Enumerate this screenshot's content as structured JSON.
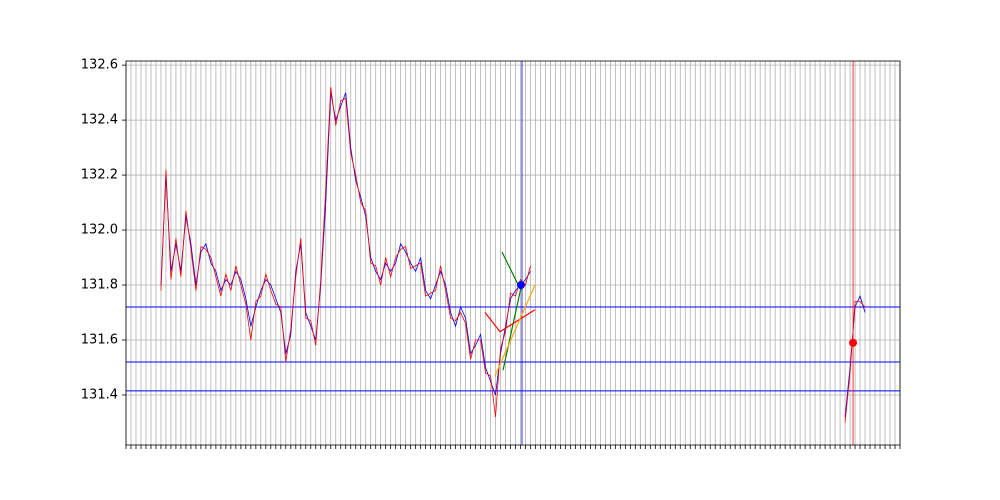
{
  "chart_data": {
    "type": "line",
    "xlim": [
      0,
      155
    ],
    "xticks": [
      0,
      1,
      2,
      3,
      4,
      5,
      6,
      7,
      8,
      9,
      10,
      11,
      12,
      13,
      14,
      15,
      16,
      17,
      18,
      19,
      20,
      21,
      22,
      23,
      24,
      25,
      26,
      27,
      28,
      29,
      30,
      31,
      32,
      33,
      34,
      35,
      36,
      37,
      38,
      39,
      40,
      41,
      42,
      43,
      44,
      45,
      46,
      47,
      48,
      49,
      50,
      51,
      52,
      53,
      54,
      55,
      56,
      57,
      58,
      59,
      60,
      61,
      62,
      63,
      64,
      65,
      66,
      67,
      68,
      69,
      70,
      71,
      72,
      73,
      74,
      75,
      76,
      77,
      78,
      79,
      80,
      81,
      82,
      83,
      84,
      85,
      86,
      87,
      88,
      89,
      90,
      91,
      92,
      93,
      94,
      95,
      96,
      97,
      98,
      99,
      100,
      101,
      102,
      103,
      104,
      105,
      106,
      107,
      108,
      109,
      110,
      111,
      112,
      113,
      114,
      115,
      116,
      117,
      118,
      119,
      120,
      121,
      122,
      123,
      124,
      125,
      126,
      127,
      128,
      129,
      130,
      131,
      132,
      133,
      134,
      135,
      136,
      137,
      138,
      139,
      140,
      141,
      142,
      143,
      144,
      145,
      146,
      147,
      148,
      149,
      150,
      151,
      152,
      153,
      154,
      155
    ],
    "ylim": [
      131.218,
      132.615
    ],
    "yticks": [
      131.4,
      131.6,
      131.8,
      {
        "value": 132,
        "label": "132.0"
      },
      132.2,
      132.4,
      132.6
    ],
    "grid": true,
    "x": [
      7,
      8,
      9,
      10,
      11,
      12,
      13,
      14,
      15,
      16,
      17,
      18,
      19,
      20,
      21,
      22,
      23,
      24,
      25,
      26,
      27,
      28,
      29,
      30,
      31,
      32,
      33,
      34,
      35,
      36,
      37,
      38,
      39,
      40,
      41,
      42,
      43,
      44,
      45,
      46,
      47,
      48,
      49,
      50,
      51,
      52,
      53,
      54,
      55,
      56,
      57,
      58,
      59,
      60,
      61,
      62,
      63,
      64,
      65,
      66,
      67,
      68,
      69,
      70,
      71,
      72,
      73,
      74,
      75,
      76,
      77,
      78,
      79,
      80,
      81,
      82,
      144,
      145,
      146,
      147,
      148
    ],
    "series": [
      {
        "color": "#0000ff",
        "values": [
          131.8,
          132.2,
          131.85,
          131.95,
          131.85,
          132.05,
          131.95,
          131.8,
          131.92,
          131.95,
          131.88,
          131.85,
          131.78,
          131.82,
          131.8,
          131.85,
          131.82,
          131.75,
          131.65,
          131.72,
          131.78,
          131.82,
          131.8,
          131.75,
          131.7,
          131.55,
          131.62,
          131.85,
          131.95,
          131.7,
          131.65,
          131.6,
          131.8,
          132.1,
          132.5,
          132.4,
          132.45,
          132.5,
          132.3,
          132.18,
          132.12,
          132.05,
          131.9,
          131.85,
          131.82,
          131.88,
          131.85,
          131.88,
          131.95,
          131.92,
          131.88,
          131.85,
          131.9,
          131.78,
          131.75,
          131.8,
          131.85,
          131.8,
          131.7,
          131.65,
          131.72,
          131.68,
          131.55,
          131.58,
          131.62,
          131.5,
          131.45,
          131.4,
          131.55,
          131.65,
          131.75,
          131.78,
          131.8,
          131.82,
          131.85,
          null,
          131.32,
          131.5,
          131.72,
          131.76,
          131.7
        ]
      },
      {
        "color": "#ff0000",
        "values": [
          131.78,
          132.22,
          131.82,
          131.97,
          131.83,
          132.07,
          131.93,
          131.78,
          131.94,
          131.93,
          131.9,
          131.83,
          131.76,
          131.84,
          131.78,
          131.87,
          131.8,
          131.73,
          131.6,
          131.74,
          131.76,
          131.84,
          131.78,
          131.73,
          131.72,
          131.52,
          131.64,
          131.83,
          131.97,
          131.68,
          131.67,
          131.58,
          131.82,
          132.15,
          132.52,
          132.38,
          132.47,
          132.48,
          132.28,
          132.2,
          132.1,
          132.07,
          131.88,
          131.87,
          131.8,
          131.9,
          131.83,
          131.9,
          131.93,
          131.94,
          131.86,
          131.87,
          131.88,
          131.76,
          131.77,
          131.78,
          131.87,
          131.78,
          131.68,
          131.67,
          131.7,
          131.66,
          131.53,
          131.6,
          131.6,
          131.48,
          131.47,
          131.32,
          131.57,
          131.63,
          131.77,
          131.76,
          131.82,
          131.8,
          131.87,
          null,
          131.3,
          131.48,
          131.74,
          131.74,
          131.72
        ]
      }
    ],
    "hlines": {
      "color": "#0000ff",
      "values": [
        131.72,
        131.52,
        131.415
      ]
    },
    "vlines": [
      {
        "color": "#0000ff",
        "x": 79.3
      },
      {
        "color": "#ff0000",
        "x": 145.6
      }
    ],
    "overlays": [
      {
        "color": "#008000",
        "x": [
          75.3,
          79.1
        ],
        "values": [
          131.92,
          131.78
        ]
      },
      {
        "color": "#008000",
        "x": [
          75.5,
          79.1
        ],
        "values": [
          131.49,
          131.79
        ]
      },
      {
        "color": "#ff0000",
        "x": [
          71.9,
          74.9,
          81.9
        ],
        "values": [
          131.7,
          131.63,
          131.71
        ]
      },
      {
        "color": "#ffa500",
        "x": [
          73.9,
          81.9
        ],
        "values": [
          131.47,
          131.8
        ]
      }
    ],
    "points": [
      {
        "color": "#0000ff",
        "x": 79.1,
        "y": 131.8
      },
      {
        "color": "#ff0000",
        "x": 145.6,
        "y": 131.59
      }
    ]
  }
}
